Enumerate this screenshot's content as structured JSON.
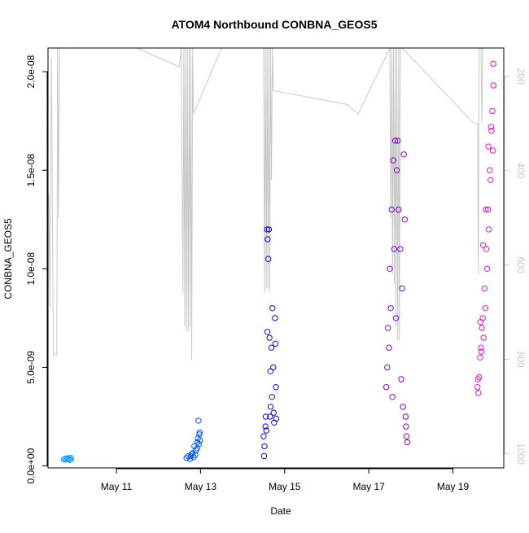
{
  "chart_data": {
    "type": "scatter",
    "title": "ATOM4 Northbound CONBNA_GEOS5",
    "xlabel": "Date",
    "ylabel": "CONBNA_GEOS5",
    "x_axis": {
      "type": "date",
      "range": [
        "2016-05-09 09:00",
        "2016-05-20 05:00"
      ],
      "ticks": [
        "2016-05-11",
        "2016-05-13",
        "2016-05-15",
        "2016-05-17",
        "2016-05-19"
      ],
      "tick_labels": [
        "May 11",
        "May 13",
        "May 15",
        "May 17",
        "May 19"
      ]
    },
    "y_axis": {
      "range": [
        -1e-10,
        2.12e-08
      ],
      "ticks": [
        0,
        5e-09,
        1e-08,
        1.5e-08,
        2e-08
      ],
      "tick_labels": [
        "0.0e+00",
        "5.0e-09",
        "1.0e-08",
        "1.5e-08",
        "2.0e-08"
      ]
    },
    "y2_axis": {
      "label": "",
      "reversed": true,
      "range": [
        1030,
        140
      ],
      "ticks": [
        200,
        400,
        600,
        800,
        1000
      ],
      "tick_labels": [
        "200",
        "400",
        "600",
        "800",
        "1000"
      ],
      "color": "#c8c8c8"
    },
    "grid": false,
    "legend": "none",
    "colors": {
      "pressure_line": "#c8c8c8",
      "flights": [
        "#1aa3ff",
        "#0057ff",
        "#2200e0",
        "#8800dd",
        "#ee11cc"
      ]
    },
    "series": [
      {
        "color": "#1aa3ff",
        "points": [
          [
            "2016-05-09 18:00",
            3.3e-10
          ],
          [
            "2016-05-09 18:40",
            3.6e-10
          ],
          [
            "2016-05-09 19:20",
            3.2e-10
          ],
          [
            "2016-05-09 20:00",
            3.9e-10
          ],
          [
            "2016-05-09 20:40",
            3.5e-10
          ],
          [
            "2016-05-09 21:20",
            3e-10
          ],
          [
            "2016-05-09 21:50",
            4.2e-10
          ],
          [
            "2016-05-09 22:10",
            3.4e-10
          ],
          [
            "2016-05-09 19:50",
            3.8e-10
          ],
          [
            "2016-05-09 21:00",
            3.7e-10
          ]
        ]
      },
      {
        "color": "#0057ff",
        "points": [
          [
            "2016-05-12 16:00",
            4e-10
          ],
          [
            "2016-05-12 17:00",
            5e-10
          ],
          [
            "2016-05-12 18:00",
            3.5e-10
          ],
          [
            "2016-05-12 19:00",
            6e-10
          ],
          [
            "2016-05-12 20:00",
            4.5e-10
          ],
          [
            "2016-05-12 21:00",
            5.5e-10
          ],
          [
            "2016-05-12 22:00",
            9e-10
          ],
          [
            "2016-05-12 22:30",
            1.4e-09
          ],
          [
            "2016-05-12 23:00",
            1.1e-09
          ],
          [
            "2016-05-12 23:20",
            1.6e-09
          ],
          [
            "2016-05-12 23:40",
            1.3e-09
          ],
          [
            "2016-05-12 20:30",
            1e-09
          ],
          [
            "2016-05-12 21:30",
            8e-10
          ],
          [
            "2016-05-12 22:50",
            2.3e-09
          ],
          [
            "2016-05-12 23:30",
            1.7e-09
          ],
          [
            "2016-05-12 19:30",
            6.5e-10
          ],
          [
            "2016-05-12 18:30",
            5e-10
          ],
          [
            "2016-05-12 22:15",
            1.2e-09
          ]
        ]
      },
      {
        "color": "#2200e0",
        "points": [
          [
            "2016-05-14 12:00",
            1.5e-09
          ],
          [
            "2016-05-14 13:00",
            2e-09
          ],
          [
            "2016-05-14 13:30",
            1.8e-09
          ],
          [
            "2016-05-14 14:00",
            1.2e-08
          ],
          [
            "2016-05-14 14:20",
            1.15e-08
          ],
          [
            "2016-05-14 14:40",
            1.05e-08
          ],
          [
            "2016-05-14 15:00",
            1.2e-08
          ],
          [
            "2016-05-14 15:20",
            6.5e-09
          ],
          [
            "2016-05-14 15:40",
            2.5e-09
          ],
          [
            "2016-05-14 16:00",
            3e-09
          ],
          [
            "2016-05-14 16:30",
            6e-09
          ],
          [
            "2016-05-14 17:00",
            8e-09
          ],
          [
            "2016-05-14 17:30",
            5e-09
          ],
          [
            "2016-05-14 18:00",
            2.2e-09
          ],
          [
            "2016-05-14 18:30",
            7.5e-09
          ],
          [
            "2016-05-14 19:00",
            4e-09
          ],
          [
            "2016-05-14 12:30",
            1e-09
          ],
          [
            "2016-05-14 13:15",
            2.5e-09
          ],
          [
            "2016-05-14 14:10",
            6.8e-09
          ],
          [
            "2016-05-14 15:50",
            4.8e-09
          ],
          [
            "2016-05-14 16:45",
            3.5e-09
          ],
          [
            "2016-05-14 17:45",
            2.7e-09
          ],
          [
            "2016-05-14 18:45",
            6.2e-09
          ],
          [
            "2016-05-14 12:15",
            5e-10
          ],
          [
            "2016-05-14 19:10",
            2.4e-09
          ]
        ]
      },
      {
        "color": "#8800dd",
        "points": [
          [
            "2016-05-17 10:00",
            4e-09
          ],
          [
            "2016-05-17 11:00",
            7e-09
          ],
          [
            "2016-05-17 12:00",
            1e-08
          ],
          [
            "2016-05-17 13:00",
            1.3e-08
          ],
          [
            "2016-05-17 14:00",
            1.55e-08
          ],
          [
            "2016-05-17 15:00",
            1.65e-08
          ],
          [
            "2016-05-17 16:00",
            1.5e-08
          ],
          [
            "2016-05-17 17:00",
            1.3e-08
          ],
          [
            "2016-05-17 18:00",
            1.1e-08
          ],
          [
            "2016-05-17 19:00",
            9e-09
          ],
          [
            "2016-05-17 20:00",
            1.58e-08
          ],
          [
            "2016-05-17 20:30",
            1.25e-08
          ],
          [
            "2016-05-17 21:00",
            2.5e-09
          ],
          [
            "2016-05-17 21:30",
            1.5e-09
          ],
          [
            "2016-05-17 22:00",
            1.2e-09
          ],
          [
            "2016-05-17 10:30",
            5e-09
          ],
          [
            "2016-05-17 11:30",
            6e-09
          ],
          [
            "2016-05-17 13:30",
            3.5e-09
          ],
          [
            "2016-05-17 15:30",
            7.5e-09
          ],
          [
            "2016-05-17 16:30",
            1.65e-08
          ],
          [
            "2016-05-17 18:30",
            4.4e-09
          ],
          [
            "2016-05-17 19:30",
            3e-09
          ],
          [
            "2016-05-17 21:15",
            2e-09
          ],
          [
            "2016-05-17 12:30",
            8e-09
          ],
          [
            "2016-05-17 14:30",
            1.1e-08
          ]
        ]
      },
      {
        "color": "#ee11cc",
        "points": [
          [
            "2016-05-19 14:00",
            4e-09
          ],
          [
            "2016-05-19 15:00",
            4.5e-09
          ],
          [
            "2016-05-19 16:00",
            6e-09
          ],
          [
            "2016-05-19 17:00",
            7.5e-09
          ],
          [
            "2016-05-19 18:00",
            9e-09
          ],
          [
            "2016-05-19 19:00",
            1.1e-08
          ],
          [
            "2016-05-19 20:00",
            1.3e-08
          ],
          [
            "2016-05-19 21:00",
            1.5e-08
          ],
          [
            "2016-05-19 22:00",
            1.7e-08
          ],
          [
            "2016-05-19 22:30",
            1.8e-08
          ],
          [
            "2016-05-19 23:00",
            2.04e-08
          ],
          [
            "2016-05-19 23:10",
            1.93e-08
          ],
          [
            "2016-05-19 14:30",
            3.7e-09
          ],
          [
            "2016-05-19 15:30",
            5.5e-09
          ],
          [
            "2016-05-19 16:30",
            7e-09
          ],
          [
            "2016-05-19 17:30",
            6.5e-09
          ],
          [
            "2016-05-19 18:30",
            8e-09
          ],
          [
            "2016-05-19 19:30",
            1e-08
          ],
          [
            "2016-05-19 20:30",
            1.2e-08
          ],
          [
            "2016-05-19 21:30",
            1.45e-08
          ],
          [
            "2016-05-19 22:45",
            1.6e-08
          ],
          [
            "2016-05-19 15:45",
            7.3e-09
          ],
          [
            "2016-05-19 17:15",
            1.12e-08
          ],
          [
            "2016-05-19 18:45",
            1.3e-08
          ],
          [
            "2016-05-19 20:15",
            1.62e-08
          ],
          [
            "2016-05-19 21:45",
            1.72e-08
          ],
          [
            "2016-05-19 14:15",
            4.4e-09
          ],
          [
            "2016-05-19 16:15",
            5.8e-09
          ]
        ]
      }
    ],
    "pressure_line": {
      "points": [
        [
          "2016-05-09 09:30",
          450
        ],
        [
          "2016-05-09 10:00",
          690
        ],
        [
          "2016-05-09 11:00",
          160
        ],
        [
          "2016-05-09 12:00",
          790
        ],
        [
          "2016-05-09 14:00",
          790
        ],
        [
          "2016-05-09 14:30",
          140
        ],
        [
          "2016-05-09 15:00",
          500
        ],
        [
          "2016-05-09 15:30",
          140
        ],
        [
          "2016-05-11 12:00",
          140
        ],
        [
          "2016-05-12 12:00",
          180
        ],
        [
          "2016-05-12 13:00",
          140
        ],
        [
          "2016-05-12 14:00",
          660
        ],
        [
          "2016-05-12 14:30",
          140
        ],
        [
          "2016-05-12 15:00",
          730
        ],
        [
          "2016-05-12 15:30",
          140
        ],
        [
          "2016-05-12 16:00",
          740
        ],
        [
          "2016-05-12 16:30",
          140
        ],
        [
          "2016-05-12 17:00",
          740
        ],
        [
          "2016-05-12 17:30",
          140
        ],
        [
          "2016-05-12 18:00",
          730
        ],
        [
          "2016-05-12 18:30",
          140
        ],
        [
          "2016-05-12 19:00",
          800
        ],
        [
          "2016-05-12 19:30",
          140
        ],
        [
          "2016-05-12 20:00",
          280
        ],
        [
          "2016-05-13 12:00",
          140
        ],
        [
          "2016-05-14 12:00",
          140
        ],
        [
          "2016-05-14 12:30",
          660
        ],
        [
          "2016-05-14 13:00",
          140
        ],
        [
          "2016-05-14 13:30",
          650
        ],
        [
          "2016-05-14 14:00",
          140
        ],
        [
          "2016-05-14 14:30",
          650
        ],
        [
          "2016-05-14 15:00",
          140
        ],
        [
          "2016-05-14 15:30",
          660
        ],
        [
          "2016-05-14 16:00",
          140
        ],
        [
          "2016-05-14 16:30",
          420
        ],
        [
          "2016-05-14 17:00",
          140
        ],
        [
          "2016-05-14 17:30",
          230
        ],
        [
          "2016-05-16 12:00",
          260
        ],
        [
          "2016-05-16 18:00",
          280
        ],
        [
          "2016-05-17 12:00",
          140
        ],
        [
          "2016-05-17 12:30",
          500
        ],
        [
          "2016-05-17 13:00",
          140
        ],
        [
          "2016-05-17 13:30",
          620
        ],
        [
          "2016-05-17 14:00",
          140
        ],
        [
          "2016-05-17 14:30",
          640
        ],
        [
          "2016-05-17 15:00",
          140
        ],
        [
          "2016-05-17 15:30",
          730
        ],
        [
          "2016-05-17 16:00",
          140
        ],
        [
          "2016-05-17 16:30",
          760
        ],
        [
          "2016-05-17 17:00",
          140
        ],
        [
          "2016-05-17 17:30",
          760
        ],
        [
          "2016-05-17 18:00",
          140
        ],
        [
          "2016-05-17 19:00",
          140
        ],
        [
          "2016-05-19 12:00",
          300
        ],
        [
          "2016-05-19 14:00",
          300
        ],
        [
          "2016-05-19 14:30",
          620
        ],
        [
          "2016-05-19 15:00",
          140
        ],
        [
          "2016-05-19 16:00",
          140
        ],
        [
          "2016-05-19 16:30",
          300
        ],
        [
          "2016-05-19 17:00",
          140
        ]
      ]
    }
  }
}
